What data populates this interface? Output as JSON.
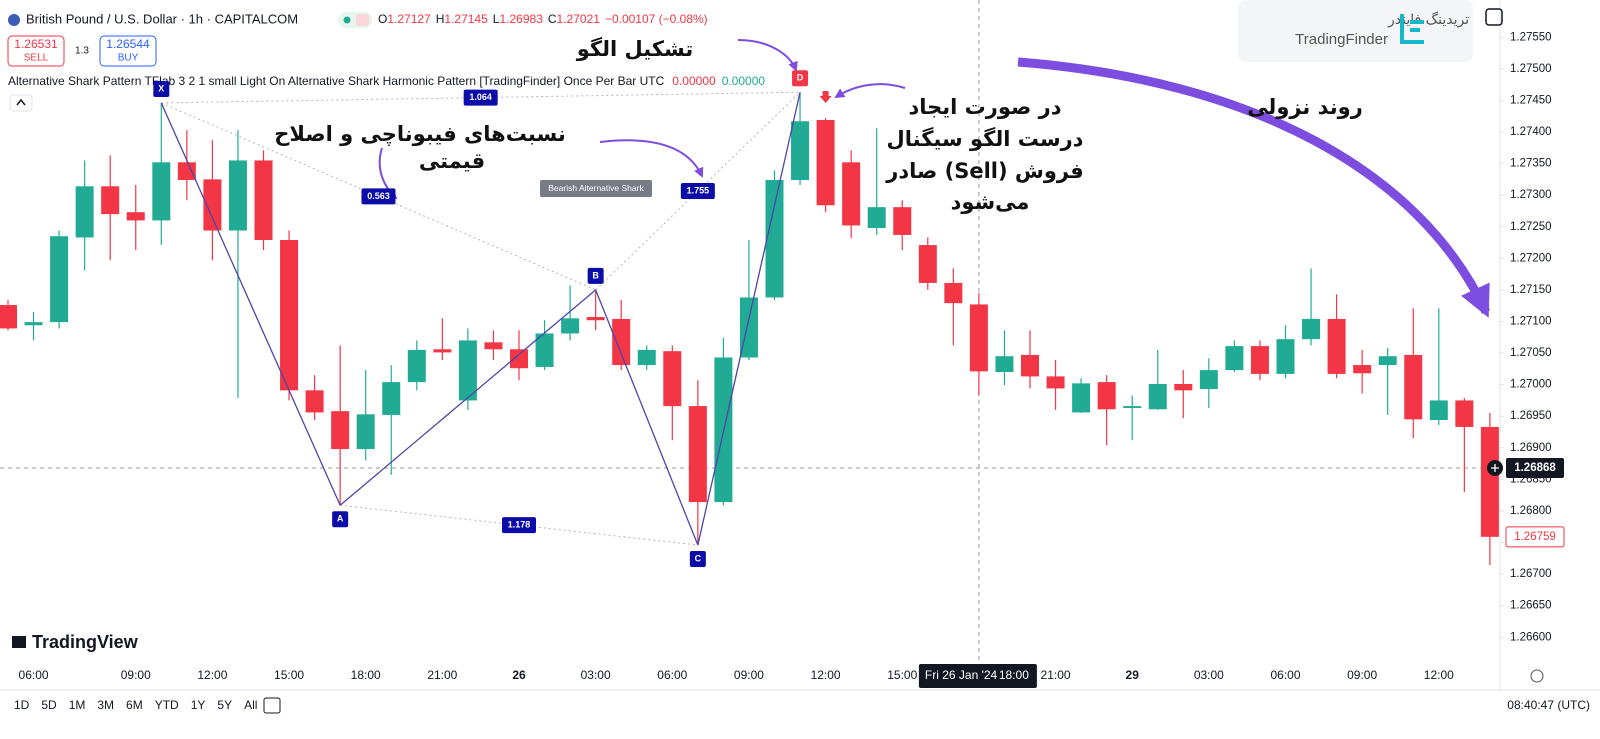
{
  "header": {
    "symbol": "British Pound / U.S. Dollar · 1h · CAPITALCOM",
    "ohlc_prefixes": [
      "O",
      "H",
      "L",
      "C"
    ],
    "change": "−0.00107 (−0.08%)",
    "sell": {
      "price": "1.26531",
      "label": "SELL"
    },
    "spread": "1.3",
    "buy": {
      "price": "1.26544",
      "label": "BUY"
    },
    "indicator": "Alternative Shark Pattern TFlab 3 2 1 small Light On Alternative Shark Harmonic Pattern [TradingFinder] Once Per Bar UTC",
    "indicator_values": [
      "0.00000",
      "0.00000"
    ]
  },
  "chart_data": {
    "type": "candlestick",
    "up_color": "#22ab94",
    "down_color": "#f23645",
    "grid": false,
    "ylim": [
      1.26564,
      1.27609
    ],
    "yticks": [
      {
        "value": 1.266,
        "label": "1.26600"
      },
      {
        "value": 1.2665,
        "label": "1.26650"
      },
      {
        "value": 1.267,
        "label": "1.26700"
      },
      {
        "value": 1.2675,
        "label": "1.26750"
      },
      {
        "value": 1.268,
        "label": "1.26800"
      },
      {
        "value": 1.2685,
        "label": "1.26850"
      },
      {
        "value": 1.269,
        "label": "1.26900"
      },
      {
        "value": 1.2695,
        "label": "1.26950"
      },
      {
        "value": 1.27,
        "label": "1.27000"
      },
      {
        "value": 1.2705,
        "label": "1.27050"
      },
      {
        "value": 1.271,
        "label": "1.27100"
      },
      {
        "value": 1.2715,
        "label": "1.27150"
      },
      {
        "value": 1.272,
        "label": "1.27200"
      },
      {
        "value": 1.2725,
        "label": "1.27250"
      },
      {
        "value": 1.273,
        "label": "1.27300"
      },
      {
        "value": 1.2735,
        "label": "1.27350"
      },
      {
        "value": 1.274,
        "label": "1.27400"
      },
      {
        "value": 1.2745,
        "label": "1.27450"
      },
      {
        "value": 1.275,
        "label": "1.27500"
      },
      {
        "value": 1.2755,
        "label": "1.27550"
      }
    ],
    "categories": [
      null,
      "06:00",
      null,
      null,
      null,
      "09:00",
      null,
      null,
      "12:00",
      null,
      null,
      "15:00",
      null,
      null,
      "18:00",
      null,
      null,
      "21:00",
      null,
      null,
      "26",
      null,
      null,
      "03:00",
      null,
      null,
      "06:00",
      null,
      null,
      "09:00",
      null,
      null,
      "12:00",
      null,
      null,
      "15:00",
      null,
      null,
      null,
      null,
      null,
      "21:00",
      null,
      null,
      "29",
      null,
      null,
      "03:00",
      null,
      null,
      "06:00",
      null,
      null,
      "09:00",
      null,
      null,
      "12:00",
      null,
      null
    ],
    "open": [
      1.27126,
      1.27094,
      1.27099,
      1.27233,
      1.27314,
      1.27273,
      1.2726,
      1.27352,
      1.27325,
      1.27244,
      1.27355,
      1.27229,
      1.26991,
      1.26958,
      1.26898,
      1.26952,
      1.27004,
      1.27056,
      1.26975,
      1.27067,
      1.27056,
      1.27028,
      1.27081,
      1.27107,
      1.27104,
      1.27031,
      1.27053,
      1.26966,
      1.26814,
      1.27043,
      1.27138,
      1.27324,
      1.27419,
      1.27352,
      1.27248,
      1.27281,
      1.27221,
      1.27161,
      1.27127,
      1.2702,
      1.27047,
      1.27013,
      1.26956,
      1.27004,
      1.26963,
      1.26961,
      1.27001,
      1.26993,
      1.27023,
      1.27061,
      1.27017,
      1.27072,
      1.27104,
      1.27031,
      1.27031,
      1.27047,
      1.26944,
      1.26975,
      1.26933
    ],
    "high": [
      1.27134,
      1.27115,
      1.27244,
      1.27355,
      1.27363,
      1.27316,
      1.27446,
      1.27403,
      1.27387,
      1.27403,
      1.27371,
      1.27244,
      1.27015,
      1.27062,
      1.27023,
      1.27031,
      1.2707,
      1.27105,
      1.27089,
      1.27086,
      1.27086,
      1.27102,
      1.27157,
      1.2715,
      1.27134,
      1.27062,
      1.27062,
      1.27007,
      1.27074,
      1.27229,
      1.27339,
      1.27463,
      1.27422,
      1.27371,
      1.27406,
      1.27292,
      1.27233,
      1.27184,
      1.27145,
      1.27086,
      1.27086,
      1.27039,
      1.2701,
      1.27015,
      1.26983,
      1.27055,
      1.27023,
      1.27042,
      1.2707,
      1.2707,
      1.27094,
      1.27184,
      1.27143,
      1.27055,
      1.27058,
      1.27121,
      1.27121,
      1.26979,
      1.26955
    ],
    "low": [
      1.27086,
      1.2707,
      1.27089,
      1.27181,
      1.27197,
      1.27213,
      1.27221,
      1.27292,
      1.27197,
      1.26979,
      1.27213,
      1.26975,
      1.26944,
      1.26809,
      1.2688,
      1.26857,
      1.26991,
      1.27039,
      1.2696,
      1.27039,
      1.27007,
      1.27023,
      1.2707,
      1.27086,
      1.27023,
      1.27023,
      1.26912,
      1.26746,
      1.26809,
      1.27039,
      1.27134,
      1.27316,
      1.27273,
      1.27232,
      1.27237,
      1.27213,
      1.2715,
      1.27062,
      1.26983,
      1.26999,
      1.26994,
      1.2696,
      1.26955,
      1.26904,
      1.26912,
      1.2696,
      1.26947,
      1.26963,
      1.2702,
      1.27007,
      1.2701,
      1.27062,
      1.2701,
      1.26986,
      1.26952,
      1.26915,
      1.26936,
      1.2683,
      1.26714
    ],
    "close": [
      1.27089,
      1.27099,
      1.27235,
      1.27314,
      1.2727,
      1.2726,
      1.27352,
      1.27324,
      1.27244,
      1.27355,
      1.27229,
      1.26991,
      1.26956,
      1.26898,
      1.26953,
      1.27004,
      1.27055,
      1.27051,
      1.2707,
      1.27056,
      1.27026,
      1.27081,
      1.27105,
      1.27102,
      1.27031,
      1.27055,
      1.26966,
      1.26814,
      1.27043,
      1.27138,
      1.27324,
      1.27417,
      1.27284,
      1.27252,
      1.27281,
      1.27237,
      1.27161,
      1.27129,
      1.27021,
      1.27045,
      1.27013,
      1.26994,
      1.27002,
      1.26961,
      1.26966,
      1.27001,
      1.26991,
      1.27023,
      1.27061,
      1.27017,
      1.27072,
      1.27104,
      1.27017,
      1.27018,
      1.27045,
      1.26945,
      1.26975,
      1.26933,
      1.26759
    ],
    "crosshair": {
      "price": 1.26868,
      "time_label": "Fri 26 Jan '24",
      "time": "18:00"
    },
    "pattern": {
      "name": "Bearish Alternative Shark",
      "points": [
        {
          "label": "X",
          "price": 1.27446
        },
        {
          "label": "A",
          "price": 1.26809
        },
        {
          "label": "B",
          "price": 1.2715
        },
        {
          "label": "C",
          "price": 1.26746
        },
        {
          "label": "D",
          "price": 1.27463
        }
      ],
      "ratios": [
        1.064,
        0.563,
        1.755,
        1.178
      ]
    },
    "annotations": {
      "pattern_formation": "تشکیل الگو",
      "fibonacci": [
        "نسبت‌های فیبوناچی و اصلاح",
        "قیمتی"
      ],
      "signal": [
        "در صورت ایجاد",
        "درست الگو سیگنال",
        "فروش (Sell) صادر",
        "می‌شود"
      ],
      "downtrend": "روند نزولی"
    }
  },
  "branding": {
    "tradingview": "TradingView",
    "tradingfinder_fa": "تریدینگ فایندر",
    "tradingfinder": "TradingFinder"
  },
  "toolbar": {
    "ranges": [
      "1D",
      "5D",
      "1M",
      "3M",
      "6M",
      "YTD",
      "1Y",
      "5Y",
      "All"
    ],
    "clock": "08:40:47 (UTC)"
  }
}
